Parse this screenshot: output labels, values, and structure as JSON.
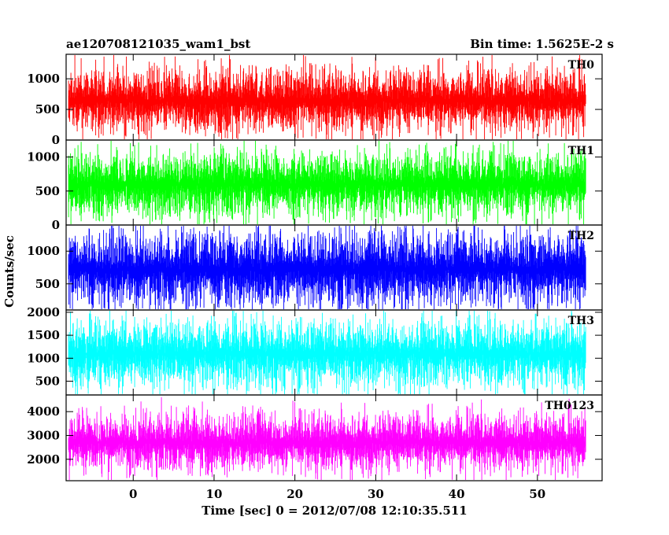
{
  "header": {
    "title": "ae120708121035_wam1_bst",
    "bin_time": "Bin time: 1.5625E-2 s"
  },
  "chart_data": {
    "type": "line",
    "title": "ae120708121035_wam1_bst",
    "xlabel": "Time [sec] 0 = 2012/07/08 12:10:35.511",
    "ylabel": "Counts/sec",
    "x_range": [
      -8.3,
      58.0
    ],
    "x_ticks": [
      0,
      10,
      20,
      30,
      40,
      50
    ],
    "x_tick_labels": [
      "0",
      "10",
      "20",
      "30",
      "40",
      "50"
    ],
    "data_x_range": [
      -8.0,
      56.0
    ],
    "bin_time_s": 0.015625,
    "panels": [
      {
        "name": "TH0",
        "color": "#ff0000",
        "ylim": [
          0,
          1400
        ],
        "yticks": [
          0,
          500,
          1000
        ],
        "ytick_labels": [
          "0",
          "500",
          "1000"
        ],
        "mean": 640,
        "spread": 300,
        "min_typ": 120,
        "max_typ": 1250
      },
      {
        "name": "TH1",
        "color": "#00ff00",
        "ylim": [
          0,
          1250
        ],
        "yticks": [
          0,
          500,
          1000
        ],
        "ytick_labels": [
          "0",
          "500",
          "1000"
        ],
        "mean": 600,
        "spread": 280,
        "min_typ": 80,
        "max_typ": 1150
      },
      {
        "name": "TH2",
        "color": "#0000ff",
        "ylim": [
          100,
          1400
        ],
        "yticks": [
          500,
          1000
        ],
        "ytick_labels": [
          "500",
          "1000"
        ],
        "mean": 720,
        "spread": 330,
        "min_typ": 200,
        "max_typ": 1380
      },
      {
        "name": "TH3",
        "color": "#00ffff",
        "ylim": [
          200,
          2050
        ],
        "yticks": [
          500,
          1000,
          1500,
          2000
        ],
        "ytick_labels": [
          "500",
          "1000",
          "1500",
          "2000"
        ],
        "mean": 1100,
        "spread": 420,
        "min_typ": 350,
        "max_typ": 1950
      },
      {
        "name": "TH0123",
        "color": "#ff00ff",
        "ylim": [
          1100,
          4700
        ],
        "yticks": [
          2000,
          3000,
          4000
        ],
        "ytick_labels": [
          "2000",
          "3000",
          "4000"
        ],
        "mean": 2700,
        "spread": 700,
        "min_typ": 1400,
        "max_typ": 4400
      }
    ]
  }
}
